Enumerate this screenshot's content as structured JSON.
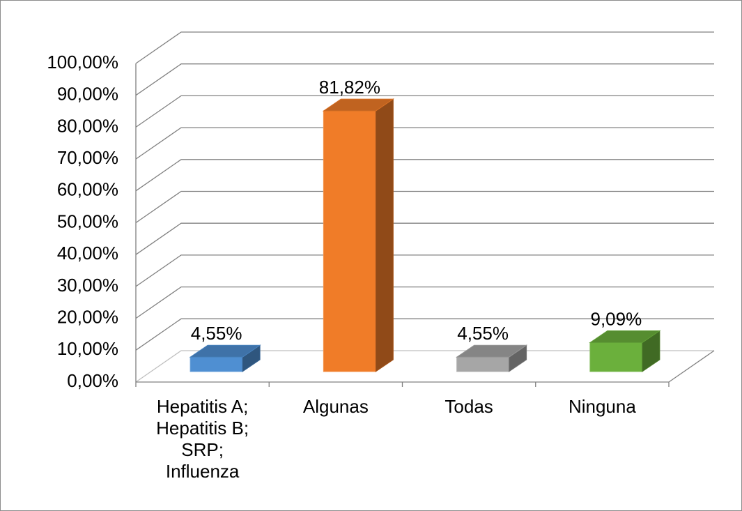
{
  "chart_data": {
    "type": "bar3d",
    "categories": [
      "Hepatitis A; Hepatitis B; SRP; Influenza",
      "Algunas",
      "Todas",
      "Ninguna"
    ],
    "values": [
      4.55,
      81.82,
      4.55,
      9.09
    ],
    "value_labels": [
      "4,55%",
      "81,82%",
      "4,55%",
      "9,09%"
    ],
    "colors": [
      "#4f8fd2",
      "#f07c28",
      "#a6a6a6",
      "#6bb03c"
    ],
    "ylim": [
      0,
      100
    ],
    "yticks": [
      {
        "value": 0,
        "label": "0,00%"
      },
      {
        "value": 10,
        "label": "10,00%"
      },
      {
        "value": 20,
        "label": "20,00%"
      },
      {
        "value": 30,
        "label": "30,00%"
      },
      {
        "value": 40,
        "label": "40,00%"
      },
      {
        "value": 50,
        "label": "50,00%"
      },
      {
        "value": 60,
        "label": "60,00%"
      },
      {
        "value": 70,
        "label": "70,00%"
      },
      {
        "value": 80,
        "label": "80,00%"
      },
      {
        "value": 90,
        "label": "90,00%"
      },
      {
        "value": 100,
        "label": "100,00%"
      }
    ],
    "grid": true
  }
}
